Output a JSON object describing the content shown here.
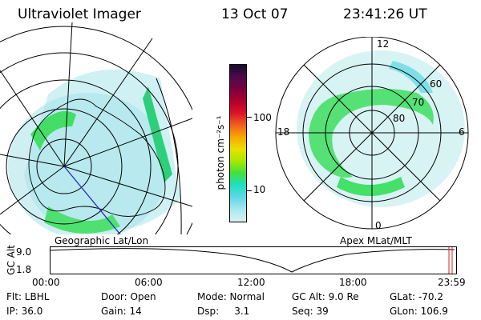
{
  "header": {
    "title": "Ultraviolet Imager",
    "date": "13 Oct 07",
    "time": "23:41:26 UT"
  },
  "left_panel": {
    "label": "Geographic Lat/Lon"
  },
  "right_panel": {
    "label": "Apex  MLat/MLT",
    "mlt_labels": {
      "top": "12",
      "left": "18",
      "right": "6",
      "bottom": "0"
    },
    "lat_labels": [
      "60",
      "70",
      "80"
    ]
  },
  "colorbar": {
    "unit_label": "photon cm⁻²s⁻¹",
    "ticks": [
      "100",
      "10"
    ],
    "colors": [
      "#1a0a2e",
      "#4b0b4b",
      "#7a0040",
      "#b0002a",
      "#d8142a",
      "#f06020",
      "#f8a800",
      "#e8e000",
      "#a8e800",
      "#40e040",
      "#20e0c0",
      "#60d8e8",
      "#a8e8ee",
      "#dcf0f0"
    ]
  },
  "altitude_plot": {
    "ylabel": "GC Alt",
    "yticks": [
      "9.0",
      "1.8"
    ],
    "xticks": [
      "00:00",
      "06:00",
      "12:00",
      "18:00",
      "23:59"
    ]
  },
  "info": {
    "row1": [
      "Flt: LBHL",
      "Door: Open",
      "Mode: Normal",
      "GC Alt: 9.0 Re",
      "GLat: -70.2"
    ],
    "row2": [
      "IP: 36.0",
      "Gain: 14",
      "Dsp:     3.1",
      "Seq: 39",
      "GLon: 106.9"
    ]
  }
}
